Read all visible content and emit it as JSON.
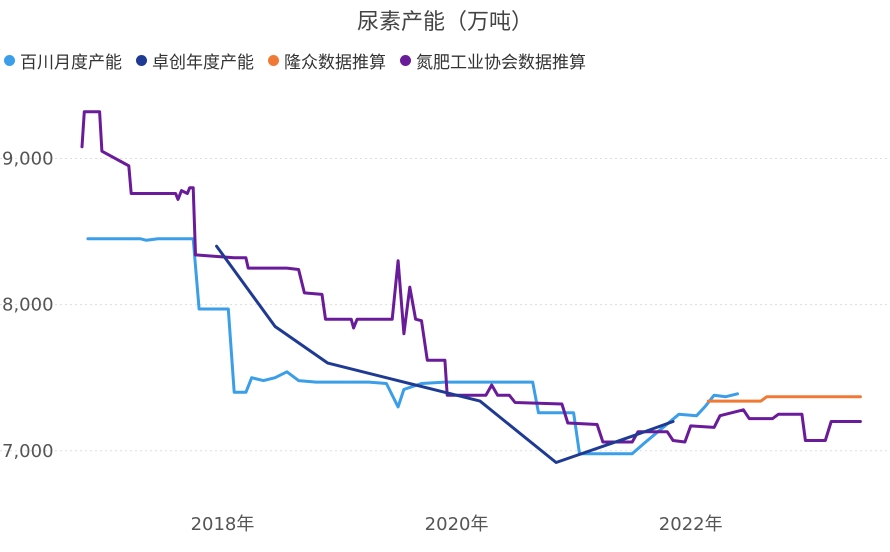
{
  "chart_data": {
    "type": "line",
    "title": "尿素产能（万吨）",
    "xlabel": "",
    "ylabel": "",
    "xlim": [
      2016.8,
      2023.6
    ],
    "ylim": [
      6800,
      9400
    ],
    "y_ticks": [
      {
        "value": 7000,
        "label": "7,000"
      },
      {
        "value": 8000,
        "label": "8,000"
      },
      {
        "value": 9000,
        "label": "9,000"
      }
    ],
    "x_ticks": [
      {
        "value": 2018,
        "label": "2018年"
      },
      {
        "value": 2020,
        "label": "2020年"
      },
      {
        "value": 2022,
        "label": "2022年"
      }
    ],
    "grid": true,
    "legend_position": "top-left",
    "series": [
      {
        "name": "百川月度产能",
        "color": "#3a9ee8",
        "points": [
          [
            2016.85,
            8450
          ],
          [
            2017.3,
            8450
          ],
          [
            2017.35,
            8440
          ],
          [
            2017.45,
            8450
          ],
          [
            2017.75,
            8450
          ],
          [
            2017.8,
            7970
          ],
          [
            2018.05,
            7970
          ],
          [
            2018.1,
            7400
          ],
          [
            2018.2,
            7400
          ],
          [
            2018.25,
            7500
          ],
          [
            2018.35,
            7480
          ],
          [
            2018.45,
            7500
          ],
          [
            2018.55,
            7540
          ],
          [
            2018.65,
            7480
          ],
          [
            2018.8,
            7470
          ],
          [
            2019.25,
            7470
          ],
          [
            2019.4,
            7460
          ],
          [
            2019.5,
            7300
          ],
          [
            2019.55,
            7420
          ],
          [
            2019.7,
            7460
          ],
          [
            2019.9,
            7470
          ],
          [
            2020.3,
            7470
          ],
          [
            2020.45,
            7470
          ],
          [
            2020.65,
            7470
          ],
          [
            2020.7,
            7260
          ],
          [
            2021.0,
            7260
          ],
          [
            2021.05,
            6980
          ],
          [
            2021.5,
            6980
          ],
          [
            2021.6,
            7050
          ],
          [
            2021.75,
            7150
          ],
          [
            2021.9,
            7250
          ],
          [
            2022.05,
            7240
          ],
          [
            2022.12,
            7300
          ],
          [
            2022.2,
            7380
          ],
          [
            2022.3,
            7370
          ],
          [
            2022.4,
            7390
          ]
        ]
      },
      {
        "name": "卓创年度产能",
        "color": "#1f3a93",
        "points": [
          [
            2017.95,
            8400
          ],
          [
            2018.45,
            7850
          ],
          [
            2018.9,
            7600
          ],
          [
            2020.2,
            7340
          ],
          [
            2020.85,
            6920
          ],
          [
            2021.5,
            7100
          ],
          [
            2021.85,
            7200
          ]
        ]
      },
      {
        "name": "隆众数据推算",
        "color": "#f07a35",
        "points": [
          [
            2022.15,
            7340
          ],
          [
            2022.6,
            7340
          ],
          [
            2022.65,
            7370
          ],
          [
            2023.45,
            7370
          ]
        ]
      },
      {
        "name": "氮肥工业协会数据推算",
        "color": "#6a1b9a",
        "points": [
          [
            2016.8,
            9080
          ],
          [
            2016.82,
            9320
          ],
          [
            2016.95,
            9320
          ],
          [
            2016.97,
            9050
          ],
          [
            2017.2,
            8950
          ],
          [
            2017.22,
            8760
          ],
          [
            2017.6,
            8760
          ],
          [
            2017.62,
            8720
          ],
          [
            2017.65,
            8780
          ],
          [
            2017.7,
            8760
          ],
          [
            2017.72,
            8800
          ],
          [
            2017.75,
            8800
          ],
          [
            2017.77,
            8340
          ],
          [
            2018.1,
            8320
          ],
          [
            2018.2,
            8320
          ],
          [
            2018.22,
            8250
          ],
          [
            2018.55,
            8250
          ],
          [
            2018.65,
            8240
          ],
          [
            2018.7,
            8080
          ],
          [
            2018.85,
            8070
          ],
          [
            2018.88,
            7900
          ],
          [
            2019.1,
            7900
          ],
          [
            2019.12,
            7840
          ],
          [
            2019.15,
            7900
          ],
          [
            2019.45,
            7900
          ],
          [
            2019.5,
            8300
          ],
          [
            2019.55,
            7800
          ],
          [
            2019.6,
            8120
          ],
          [
            2019.65,
            7900
          ],
          [
            2019.7,
            7890
          ],
          [
            2019.75,
            7620
          ],
          [
            2019.9,
            7620
          ],
          [
            2019.92,
            7380
          ],
          [
            2020.25,
            7380
          ],
          [
            2020.3,
            7450
          ],
          [
            2020.35,
            7380
          ],
          [
            2020.45,
            7380
          ],
          [
            2020.5,
            7330
          ],
          [
            2020.9,
            7320
          ],
          [
            2020.95,
            7190
          ],
          [
            2021.2,
            7180
          ],
          [
            2021.25,
            7060
          ],
          [
            2021.5,
            7060
          ],
          [
            2021.55,
            7130
          ],
          [
            2021.8,
            7130
          ],
          [
            2021.85,
            7070
          ],
          [
            2021.95,
            7060
          ],
          [
            2022.0,
            7170
          ],
          [
            2022.2,
            7160
          ],
          [
            2022.25,
            7240
          ],
          [
            2022.45,
            7280
          ],
          [
            2022.5,
            7220
          ],
          [
            2022.7,
            7220
          ],
          [
            2022.75,
            7250
          ],
          [
            2022.95,
            7250
          ],
          [
            2022.98,
            7070
          ],
          [
            2023.15,
            7070
          ],
          [
            2023.2,
            7200
          ],
          [
            2023.45,
            7200
          ]
        ]
      }
    ]
  }
}
